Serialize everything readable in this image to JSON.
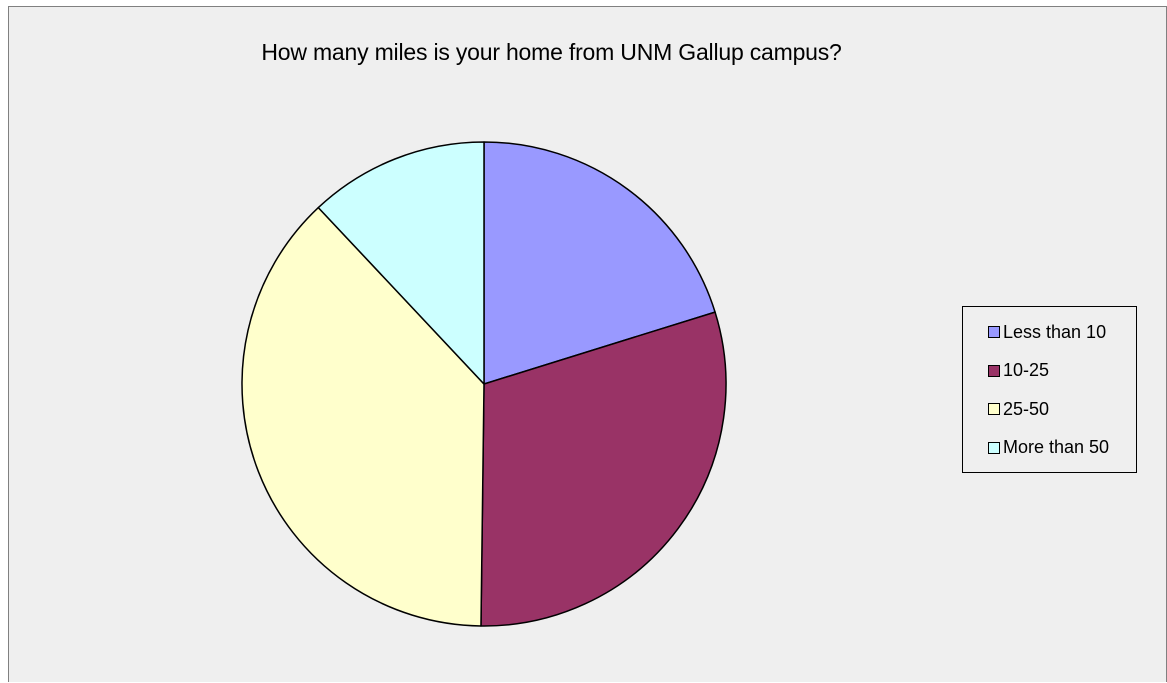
{
  "chart_data": {
    "type": "pie",
    "title": "How many miles is your home from UNM Gallup campus?",
    "categories": [
      "Less than 10",
      "10-25",
      "25-50",
      "More than 50"
    ],
    "values": [
      20.2,
      30.0,
      37.8,
      12.0
    ],
    "colors": [
      "#9999ff",
      "#993366",
      "#ffffcc",
      "#ccffff"
    ],
    "legend_position": "right"
  }
}
